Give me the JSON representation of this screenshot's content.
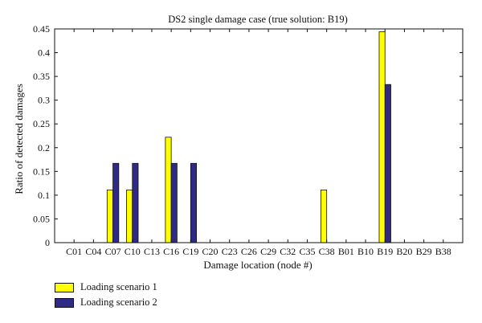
{
  "chart_data": {
    "type": "bar",
    "title": "DS2 single damage case (true solution: B19)",
    "xlabel": "Damage location (node #)",
    "ylabel": "Ratio of detected damages",
    "ylim": [
      0,
      0.45
    ],
    "yticks": [
      "0",
      "0.05",
      "0.1",
      "0.15",
      "0.2",
      "0.25",
      "0.3",
      "0.35",
      "0.4",
      "0.45"
    ],
    "categories": [
      "C01",
      "C04",
      "C07",
      "C10",
      "C13",
      "C16",
      "C19",
      "C20",
      "C23",
      "C26",
      "C29",
      "C32",
      "C35",
      "C38",
      "B01",
      "B10",
      "B19",
      "B20",
      "B29",
      "B38"
    ],
    "series": [
      {
        "name": "Loading scenario 1",
        "color": "#ffff00",
        "values": [
          0,
          0,
          0.111,
          0.111,
          0,
          0.222,
          0,
          0,
          0,
          0,
          0,
          0,
          0,
          0.111,
          0,
          0,
          0.444,
          0,
          0,
          0
        ]
      },
      {
        "name": "Loading scenario 2",
        "color": "#2e2a85",
        "values": [
          0,
          0,
          0.167,
          0.167,
          0,
          0.167,
          0.167,
          0,
          0,
          0,
          0,
          0,
          0,
          0,
          0,
          0,
          0.333,
          0,
          0,
          0
        ]
      }
    ],
    "grid": false,
    "legend_position": "bottom-left"
  }
}
